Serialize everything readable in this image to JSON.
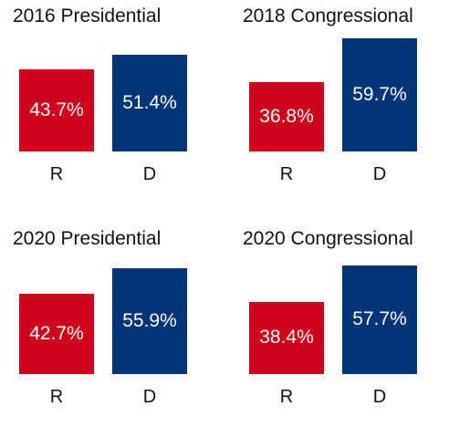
{
  "colors": {
    "R": "#d0021b",
    "D": "#003478"
  },
  "chart_data": [
    {
      "type": "bar",
      "title": "2016 Presidential",
      "categories": [
        "R",
        "D"
      ],
      "values": [
        43.7,
        51.4
      ],
      "value_labels": [
        "43.7%",
        "51.4%"
      ],
      "unit": "%"
    },
    {
      "type": "bar",
      "title": "2018 Congressional",
      "categories": [
        "R",
        "D"
      ],
      "values": [
        36.8,
        59.7
      ],
      "value_labels": [
        "36.8%",
        "59.7%"
      ],
      "unit": "%"
    },
    {
      "type": "bar",
      "title": "2020 Presidential",
      "categories": [
        "R",
        "D"
      ],
      "values": [
        42.7,
        55.9
      ],
      "value_labels": [
        "42.7%",
        "55.9%"
      ],
      "unit": "%"
    },
    {
      "type": "bar",
      "title": "2020 Congressional",
      "categories": [
        "R",
        "D"
      ],
      "values": [
        38.4,
        57.7
      ],
      "value_labels": [
        "38.4%",
        "57.7%"
      ],
      "unit": "%"
    }
  ]
}
